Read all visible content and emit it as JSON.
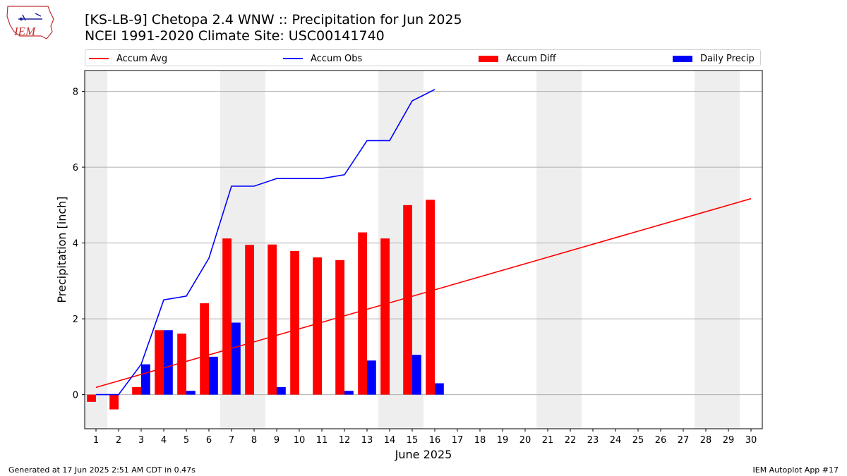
{
  "header": {
    "title_line1": "[KS-LB-9] Chetopa 2.4 WNW :: Precipitation for Jun 2025",
    "title_line2": "NCEI 1991-2020 Climate Site: USC00141740",
    "logo_text": "IEM"
  },
  "footer": {
    "left": "Generated at 17 Jun 2025 2:51 AM CDT in 0.47s",
    "right": "IEM Autoplot App #17"
  },
  "colors": {
    "accum_avg": "#ff0000",
    "accum_obs": "#0000ff",
    "accum_diff": "#ff0000",
    "daily_precip": "#0000ff",
    "weekend_shade": "#eeeeee",
    "grid": "#b0b0b0"
  },
  "chart_data": {
    "type": "bar",
    "xlabel": "June 2025",
    "ylabel": "Precipitation [inch]",
    "x": [
      1,
      2,
      3,
      4,
      5,
      6,
      7,
      8,
      9,
      10,
      11,
      12,
      13,
      14,
      15,
      16,
      17,
      18,
      19,
      20,
      21,
      22,
      23,
      24,
      25,
      26,
      27,
      28,
      29,
      30
    ],
    "xlim": [
      0.5,
      30.5
    ],
    "ylim": [
      -0.9,
      8.55
    ],
    "yticks": [
      0,
      2,
      4,
      6,
      8
    ],
    "grid": "horizontal",
    "legend_position": "top",
    "weekend_shaded_days": [
      1,
      7,
      8,
      14,
      15,
      21,
      22,
      28,
      29
    ],
    "series": [
      {
        "name": "Accum Avg",
        "kind": "line",
        "x": [
          1,
          30
        ],
        "values": [
          0.19,
          5.17
        ]
      },
      {
        "name": "Accum Obs",
        "kind": "line",
        "x": [
          1,
          2,
          3,
          4,
          5,
          6,
          7,
          8,
          9,
          10,
          11,
          12,
          13,
          14,
          15,
          16
        ],
        "values": [
          0.0,
          0.0,
          0.8,
          2.5,
          2.6,
          3.6,
          5.5,
          5.5,
          5.7,
          5.7,
          5.7,
          5.8,
          6.7,
          6.7,
          7.75,
          8.05
        ]
      },
      {
        "name": "Accum Diff",
        "kind": "bar",
        "x": [
          1,
          2,
          3,
          4,
          5,
          6,
          7,
          8,
          9,
          10,
          11,
          12,
          13,
          14,
          15,
          16
        ],
        "values": [
          -0.19,
          -0.39,
          0.2,
          1.7,
          1.61,
          2.41,
          4.12,
          3.95,
          3.96,
          3.79,
          3.62,
          3.55,
          4.28,
          4.12,
          5.0,
          5.14
        ]
      },
      {
        "name": "Daily Precip",
        "kind": "bar",
        "x": [
          1,
          2,
          3,
          4,
          5,
          6,
          7,
          8,
          9,
          10,
          11,
          12,
          13,
          14,
          15,
          16
        ],
        "values": [
          0.0,
          0.0,
          0.8,
          1.7,
          0.1,
          1.0,
          1.9,
          0.0,
          0.2,
          0.0,
          0.0,
          0.1,
          0.9,
          0.0,
          1.05,
          0.3
        ]
      }
    ]
  }
}
